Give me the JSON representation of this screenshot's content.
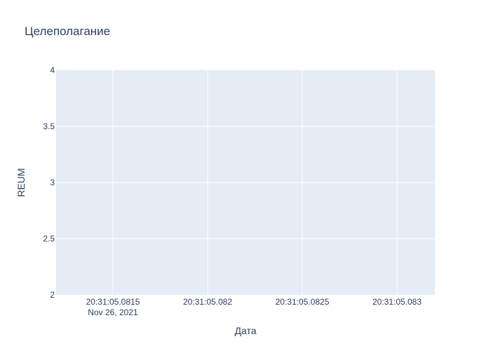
{
  "chart_data": {
    "type": "line",
    "title": "Целеполагание",
    "xlabel": "Дата",
    "ylabel": "REUM",
    "xticks": [
      {
        "time": "20:31:05.0815",
        "value": 0.0815,
        "date": "Nov 26, 2021"
      },
      {
        "time": "20:31:05.082",
        "value": 0.082,
        "date": ""
      },
      {
        "time": "20:31:05.0825",
        "value": 0.0825,
        "date": ""
      },
      {
        "time": "20:31:05.083",
        "value": 0.083,
        "date": ""
      }
    ],
    "xlim": [
      0.0812,
      0.0832
    ],
    "yticks": [
      "2",
      "2.5",
      "3",
      "3.5",
      "4"
    ],
    "ylim": [
      2,
      4
    ],
    "grid": true,
    "series": []
  },
  "colors": {
    "plot_bg": "#e5ecf6",
    "grid": "#ffffff",
    "text": "#2a3f5f"
  }
}
